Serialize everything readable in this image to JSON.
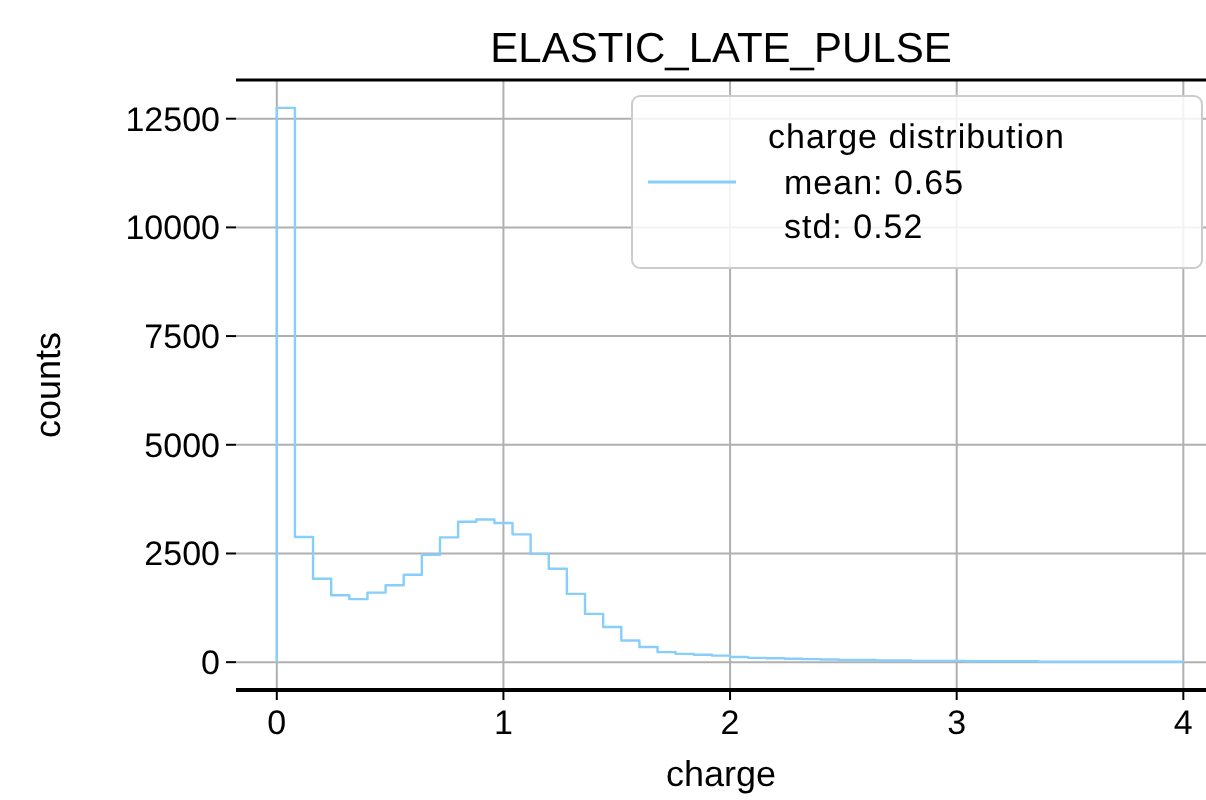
{
  "chart_data": {
    "type": "histogram",
    "title": "ELASTIC_LATE_PULSE",
    "xlabel": "charge",
    "ylabel": "counts",
    "bins": [
      0,
      0.08,
      0.16,
      0.24,
      0.32,
      0.4,
      0.48,
      0.56,
      0.64,
      0.72,
      0.8,
      0.88,
      0.96,
      1.04,
      1.12,
      1.2,
      1.28,
      1.36,
      1.44,
      1.52,
      1.6,
      1.68,
      1.76,
      1.84,
      1.92,
      2,
      2.08,
      2.16,
      2.24,
      2.32,
      2.4,
      2.48,
      2.56,
      2.64,
      2.72,
      2.8,
      2.88,
      2.96,
      3.04,
      3.12,
      3.2,
      3.28,
      3.36,
      3.44,
      3.52,
      3.6,
      3.68,
      3.76,
      3.84,
      3.92,
      4
    ],
    "series": [
      {
        "name": "charge distribution",
        "color": "#87cefa",
        "values": [
          12750,
          2880,
          1920,
          1540,
          1450,
          1600,
          1770,
          2010,
          2470,
          2870,
          3230,
          3280,
          3200,
          2940,
          2490,
          2150,
          1570,
          1110,
          810,
          500,
          350,
          230,
          190,
          170,
          150,
          120,
          100,
          90,
          80,
          70,
          60,
          50,
          50,
          40,
          40,
          30,
          30,
          30,
          20,
          20,
          20,
          20,
          10,
          10,
          10,
          10,
          10,
          10,
          10,
          10
        ]
      }
    ],
    "annotations": [
      "mean: 0.65",
      "std: 0.52"
    ],
    "xlim": [
      -0.18,
      4.1
    ],
    "ylim": [
      -640,
      13390
    ],
    "xticks": [
      0,
      1,
      2,
      3,
      4
    ],
    "yticks": [
      0,
      2500,
      5000,
      7500,
      10000,
      12500
    ],
    "grid": true,
    "legend": "top right"
  }
}
